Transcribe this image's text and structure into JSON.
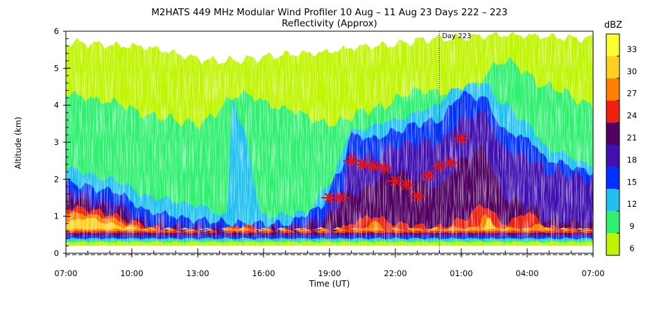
{
  "chart_data": {
    "type": "heatmap",
    "title": "M2HATS 449 MHz Modular Wind Profiler  10 Aug – 11 Aug 23 Days 222 – 223",
    "subtitle": "Reflectivity (Approx)",
    "xlabel": "Time (UT)",
    "ylabel": "Altitude (km)",
    "x_range_hours": [
      7,
      31
    ],
    "x_ticks": [
      "07:00",
      "10:00",
      "13:00",
      "16:00",
      "19:00",
      "22:00",
      "01:00",
      "04:00",
      "07:00"
    ],
    "ylim": [
      0,
      6
    ],
    "y_ticks": [
      "0",
      "1",
      "2",
      "3",
      "4",
      "5",
      "6"
    ],
    "day_marker": {
      "label": "Day 223",
      "x_hours": 24
    },
    "colorbar": {
      "label": "dBZ",
      "ticks": [
        "6",
        "9",
        "12",
        "15",
        "18",
        "21",
        "24",
        "27",
        "30",
        "33"
      ],
      "colors": [
        "#bff500",
        "#30f070",
        "#20c0f0",
        "#0030ff",
        "#4010b0",
        "#500060",
        "#f02010",
        "#ff8000",
        "#ffd020",
        "#ffff30"
      ]
    },
    "marked_points": {
      "marker": "red star",
      "color": "#e81010",
      "points": [
        {
          "x": 19.0,
          "y": 1.5
        },
        {
          "x": 19.5,
          "y": 1.5
        },
        {
          "x": 20.0,
          "y": 2.5
        },
        {
          "x": 20.5,
          "y": 2.4
        },
        {
          "x": 21.0,
          "y": 2.35
        },
        {
          "x": 21.5,
          "y": 2.3
        },
        {
          "x": 22.0,
          "y": 1.95
        },
        {
          "x": 22.5,
          "y": 1.85
        },
        {
          "x": 23.0,
          "y": 1.55
        },
        {
          "x": 23.5,
          "y": 2.1
        },
        {
          "x": 24.0,
          "y": 2.35
        },
        {
          "x": 24.5,
          "y": 2.45
        },
        {
          "x": 25.0,
          "y": 3.1
        }
      ]
    }
  }
}
